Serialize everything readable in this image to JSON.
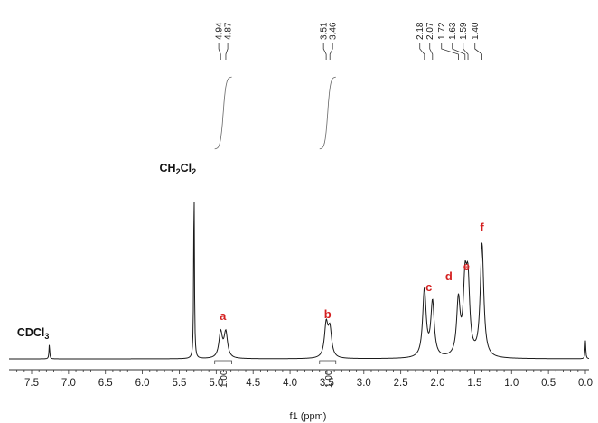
{
  "chart_data": {
    "type": "line",
    "title": "",
    "xlabel": "f1 (ppm)",
    "ylabel": "",
    "xlim": [
      7.8,
      -0.1
    ],
    "x_reversed": true,
    "ylim": [
      0,
      1.0
    ],
    "grid": false,
    "x_ticks": [
      "7.5",
      "7.0",
      "6.5",
      "6.0",
      "5.5",
      "5.0",
      "4.5",
      "4.0",
      "3.5",
      "3.0",
      "2.5",
      "2.0",
      "1.5",
      "1.0",
      "0.5",
      "0.0"
    ],
    "peaks": [
      {
        "ppm": 7.26,
        "height": 0.08
      },
      {
        "ppm": 5.3,
        "height": 0.98
      },
      {
        "ppm": 4.94,
        "height": 0.14
      },
      {
        "ppm": 4.87,
        "height": 0.14
      },
      {
        "ppm": 3.51,
        "height": 0.18
      },
      {
        "ppm": 3.46,
        "height": 0.15
      },
      {
        "ppm": 2.18,
        "height": 0.37
      },
      {
        "ppm": 2.07,
        "height": 0.3
      },
      {
        "ppm": 1.72,
        "height": 0.3
      },
      {
        "ppm": 1.63,
        "height": 0.37
      },
      {
        "ppm": 1.59,
        "height": 0.37
      },
      {
        "ppm": 1.4,
        "height": 0.62
      },
      {
        "ppm": 0.0,
        "height": 0.1
      }
    ],
    "peak_labels": [
      "4.94",
      "4.87",
      "3.51",
      "3.46",
      "2.18",
      "2.07",
      "1.72",
      "1.63",
      "1.59",
      "1.40"
    ],
    "assignments": [
      {
        "letter": "a",
        "ppm": 4.91
      },
      {
        "letter": "b",
        "ppm": 3.49
      },
      {
        "letter": "c",
        "ppm": 2.12
      },
      {
        "letter": "d",
        "ppm": 1.85
      },
      {
        "letter": "e",
        "ppm": 1.61
      },
      {
        "letter": "f",
        "ppm": 1.4
      }
    ],
    "solvent_labels": [
      {
        "base": "CDCl",
        "sub": "3",
        "ppm": 7.26
      },
      {
        "base": "CH",
        "sub": "2",
        "base2": "Cl",
        "sub2": "2",
        "ppm": 5.3
      }
    ],
    "integrals": [
      {
        "from": 5.02,
        "to": 4.79,
        "value": "1.00"
      },
      {
        "from": 3.6,
        "to": 3.38,
        "value": "1.00"
      }
    ]
  }
}
